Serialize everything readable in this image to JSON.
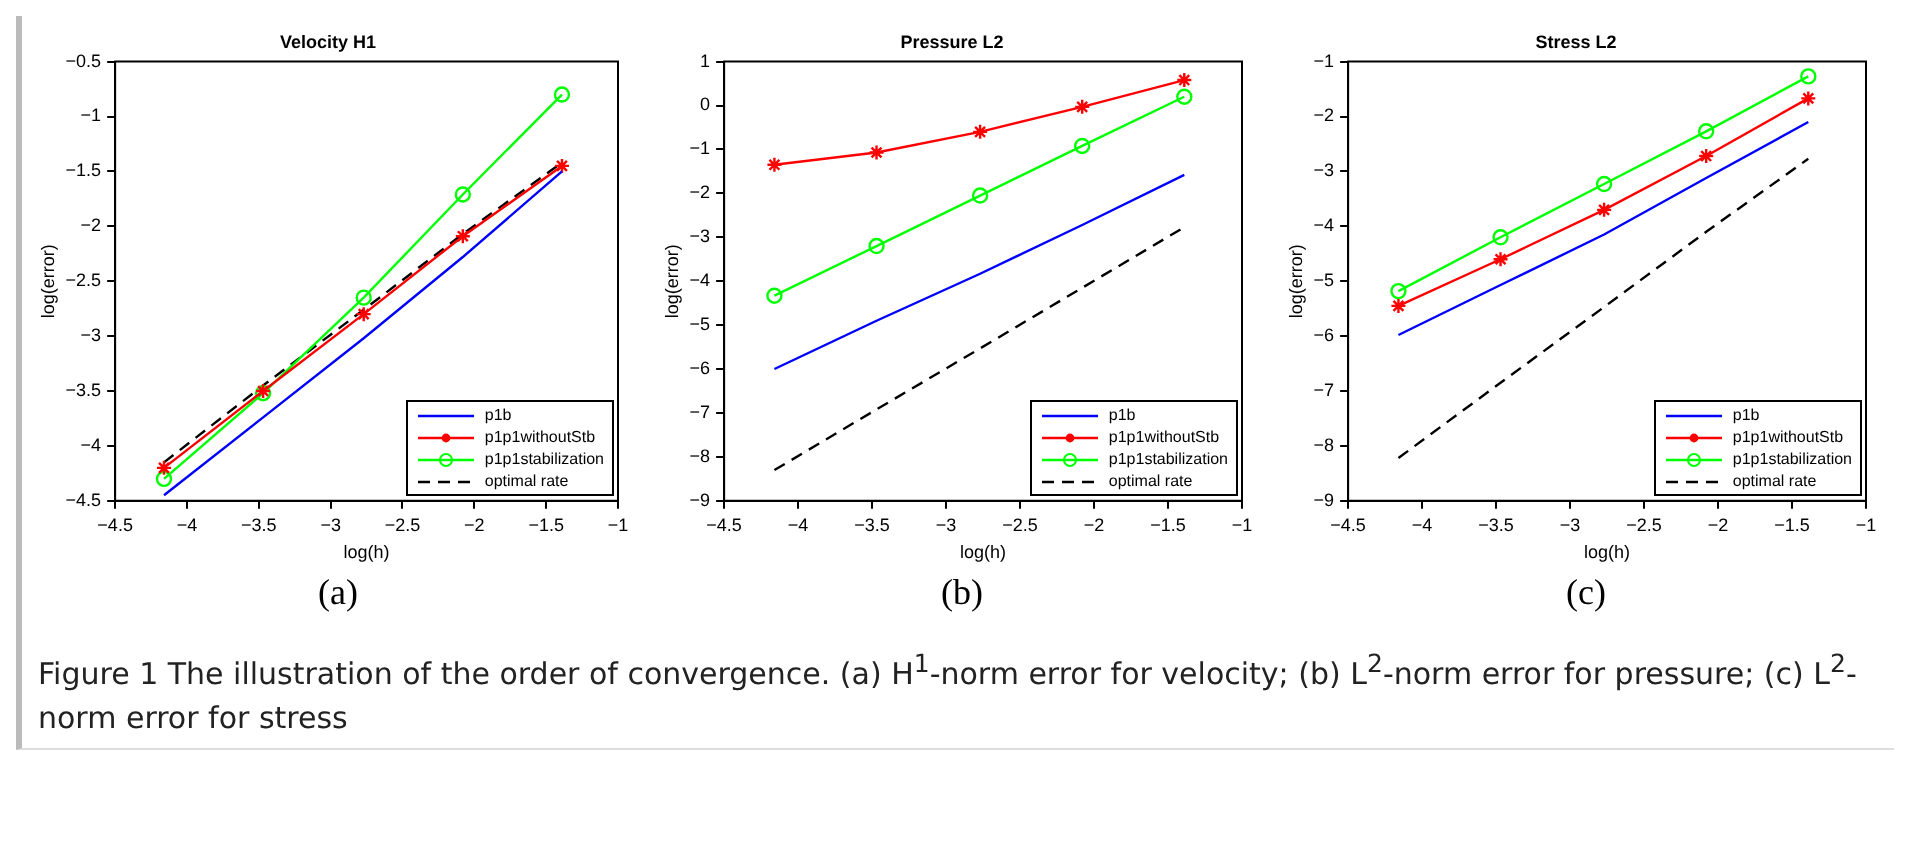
{
  "chart_data": [
    {
      "type": "line",
      "title": "Velocity H1",
      "xlabel": "log(h)",
      "ylabel": "log(error)",
      "x": [
        -4.16,
        -3.47,
        -2.77,
        -2.08,
        -1.39
      ],
      "xlim": [
        -4.5,
        -1
      ],
      "xticks": [
        -4.5,
        -4,
        -3.5,
        -3,
        -2.5,
        -2,
        -1.5,
        -1
      ],
      "ylim": [
        -4.5,
        -0.5
      ],
      "yticks": [
        -4.5,
        -4,
        -3.5,
        -3,
        -2.5,
        -2,
        -1.5,
        -1,
        -0.5
      ],
      "grid": false,
      "legend": "bottom right",
      "annotations": [
        "(a)"
      ],
      "series": [
        {
          "name": "p1b",
          "color": "#0000ff",
          "marker": "none",
          "line_style": "solid",
          "values": [
            -4.45,
            -3.74,
            -3.02,
            -2.28,
            -1.5
          ]
        },
        {
          "name": "p1p1withoutStb",
          "color": "#ff0000",
          "marker": "cross",
          "line_style": "solid",
          "values": [
            -4.2,
            -3.5,
            -2.8,
            -2.09,
            -1.45
          ]
        },
        {
          "name": "p1p1stabilization",
          "color": "#00ff00",
          "marker": "circle",
          "line_style": "solid",
          "values": [
            -4.3,
            -3.52,
            -2.65,
            -1.71,
            -0.8
          ]
        },
        {
          "name": "optimal rate",
          "color": "#000000",
          "marker": "none",
          "line_style": "dashed",
          "values": [
            -4.15,
            -3.45,
            -2.76,
            -2.07,
            -1.42
          ]
        }
      ]
    },
    {
      "type": "line",
      "title": "Pressure L2",
      "xlabel": "log(h)",
      "ylabel": "log(error)",
      "x": [
        -4.16,
        -3.47,
        -2.77,
        -2.08,
        -1.39
      ],
      "xlim": [
        -4.5,
        -1
      ],
      "xticks": [
        -4.5,
        -4,
        -3.5,
        -3,
        -2.5,
        -2,
        -1.5,
        -1
      ],
      "ylim": [
        -9,
        1
      ],
      "yticks": [
        -9,
        -8,
        -7,
        -6,
        -5,
        -4,
        -3,
        -2,
        -1,
        0,
        1
      ],
      "grid": false,
      "legend": "bottom right",
      "annotations": [
        "(b)"
      ],
      "series": [
        {
          "name": "p1b",
          "color": "#0000ff",
          "marker": "none",
          "line_style": "solid",
          "values": [
            -6.0,
            -4.9,
            -3.83,
            -2.72,
            -1.58
          ]
        },
        {
          "name": "p1p1withoutStb",
          "color": "#ff0000",
          "marker": "cross",
          "line_style": "solid",
          "values": [
            -1.35,
            -1.07,
            -0.6,
            -0.03,
            0.58
          ]
        },
        {
          "name": "p1p1stabilization",
          "color": "#00ff00",
          "marker": "circle",
          "line_style": "solid",
          "values": [
            -4.33,
            -3.2,
            -2.05,
            -0.92,
            0.2
          ]
        },
        {
          "name": "optimal rate",
          "color": "#000000",
          "marker": "none",
          "line_style": "dashed",
          "values": [
            -8.3,
            -6.92,
            -5.53,
            -4.15,
            -2.77
          ]
        }
      ]
    },
    {
      "type": "line",
      "title": "Stress L2",
      "xlabel": "log(h)",
      "ylabel": "log(error)",
      "x": [
        -4.16,
        -3.47,
        -2.77,
        -2.08,
        -1.39
      ],
      "xlim": [
        -4.5,
        -1
      ],
      "xticks": [
        -4.5,
        -4,
        -3.5,
        -3,
        -2.5,
        -2,
        -1.5,
        -1
      ],
      "ylim": [
        -9,
        -1
      ],
      "yticks": [
        -9,
        -8,
        -7,
        -6,
        -5,
        -4,
        -3,
        -2,
        -1
      ],
      "grid": false,
      "legend": "bottom right",
      "annotations": [
        "(c)"
      ],
      "series": [
        {
          "name": "p1b",
          "color": "#0000ff",
          "marker": "none",
          "line_style": "solid",
          "values": [
            -5.98,
            -5.07,
            -4.15,
            -3.12,
            -2.1
          ]
        },
        {
          "name": "p1p1withoutStb",
          "color": "#ff0000",
          "marker": "cross",
          "line_style": "solid",
          "values": [
            -5.45,
            -4.6,
            -3.7,
            -2.72,
            -1.67
          ]
        },
        {
          "name": "p1p1stabilization",
          "color": "#00ff00",
          "marker": "circle",
          "line_style": "solid",
          "values": [
            -5.18,
            -4.2,
            -3.23,
            -2.27,
            -1.27
          ]
        },
        {
          "name": "optimal rate",
          "color": "#000000",
          "marker": "none",
          "line_style": "dashed",
          "values": [
            -8.22,
            -6.85,
            -5.47,
            -4.1,
            -2.77
          ]
        }
      ]
    },
    {
      "type": "other",
      "annotations": [
        "Figure 1  The illustration of the order of convergence. (a) H$^{1}$-norm error for velocity; (b) L$^{2}$-norm error for pressure; (c) L$^{2}$-norm error for stress"
      ]
    }
  ]
}
